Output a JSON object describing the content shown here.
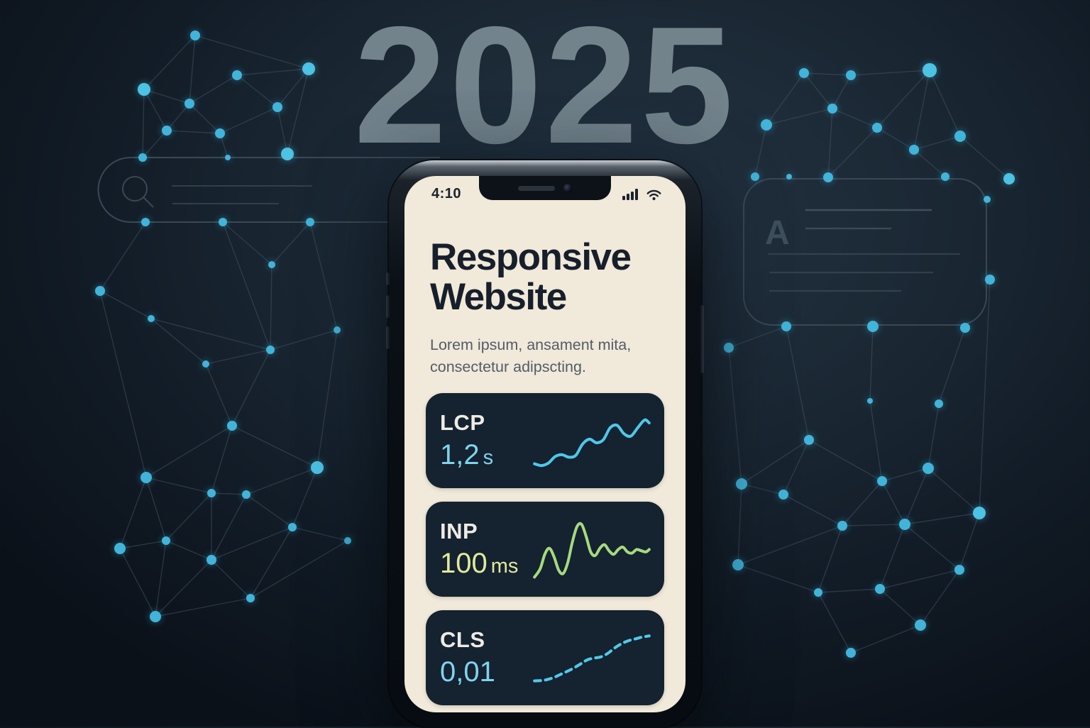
{
  "year_label": "2025",
  "background_decorations": {
    "search_sketch": {
      "icon": "search-icon"
    },
    "document_sketch": {
      "letter": "A"
    }
  },
  "phone": {
    "status_bar": {
      "time": "4:10",
      "icons": [
        "signal-icon",
        "wifi-icon"
      ]
    },
    "title": "Responsive Website",
    "subtitle": "Lorem ipsum, ansament mita, consectetur adipscting.",
    "metrics": [
      {
        "label": "LCP",
        "value": "1,2",
        "unit": "s",
        "value_color": "#7fd3ee",
        "line_color": "#4ec7e9",
        "line_style": "solid"
      },
      {
        "label": "INP",
        "value": "100",
        "unit": "ms",
        "value_color": "#e0ea9c",
        "line_color": "#a6da7e",
        "line_style": "solid"
      },
      {
        "label": "CLS",
        "value": "0,01",
        "unit": "",
        "value_color": "#7fd3ee",
        "line_color": "#52c8e8",
        "line_style": "dashed"
      }
    ]
  },
  "colors": {
    "background_center": "#243342",
    "background_edge": "#0b1119",
    "node_blue": "#41b4da",
    "edge_line": "#4a5b68",
    "screen_cream": "#f1e9d9",
    "card_navy": "#152230",
    "title_ink": "#161f2b",
    "year_gray": "#73838c"
  },
  "chart_data": [
    {
      "type": "line",
      "title": "LCP trend sparkline",
      "xlabel": "",
      "ylabel": "",
      "legend": [],
      "grid": false,
      "points": [
        [
          0,
          12
        ],
        [
          6,
          9
        ],
        [
          12,
          13
        ],
        [
          18,
          24
        ],
        [
          24,
          27
        ],
        [
          30,
          23
        ],
        [
          36,
          26
        ],
        [
          42,
          45
        ],
        [
          48,
          53
        ],
        [
          54,
          47
        ],
        [
          60,
          52
        ],
        [
          66,
          72
        ],
        [
          72,
          76
        ],
        [
          78,
          62
        ],
        [
          84,
          58
        ],
        [
          90,
          72
        ],
        [
          96,
          85
        ],
        [
          100,
          80
        ]
      ]
    },
    {
      "type": "line",
      "title": "INP trend sparkline",
      "xlabel": "",
      "ylabel": "",
      "legend": [],
      "grid": false,
      "points": [
        [
          0,
          4
        ],
        [
          5,
          18
        ],
        [
          9,
          42
        ],
        [
          13,
          52
        ],
        [
          17,
          38
        ],
        [
          21,
          16
        ],
        [
          25,
          10
        ],
        [
          29,
          28
        ],
        [
          33,
          62
        ],
        [
          37,
          88
        ],
        [
          41,
          92
        ],
        [
          45,
          72
        ],
        [
          49,
          46
        ],
        [
          53,
          40
        ],
        [
          57,
          52
        ],
        [
          61,
          58
        ],
        [
          65,
          48
        ],
        [
          69,
          42
        ],
        [
          73,
          50
        ],
        [
          77,
          54
        ],
        [
          81,
          46
        ],
        [
          85,
          44
        ],
        [
          89,
          50
        ],
        [
          93,
          48
        ],
        [
          97,
          46
        ],
        [
          100,
          50
        ]
      ]
    },
    {
      "type": "line",
      "title": "CLS trend sparkline",
      "xlabel": "",
      "ylabel": "",
      "legend": [],
      "grid": false,
      "points": [
        [
          0,
          12
        ],
        [
          8,
          13
        ],
        [
          16,
          17
        ],
        [
          24,
          24
        ],
        [
          32,
          31
        ],
        [
          40,
          40
        ],
        [
          46,
          47
        ],
        [
          52,
          50
        ],
        [
          58,
          52
        ],
        [
          64,
          58
        ],
        [
          70,
          67
        ],
        [
          76,
          74
        ],
        [
          82,
          79
        ],
        [
          88,
          82
        ],
        [
          94,
          85
        ],
        [
          100,
          87
        ]
      ]
    }
  ]
}
